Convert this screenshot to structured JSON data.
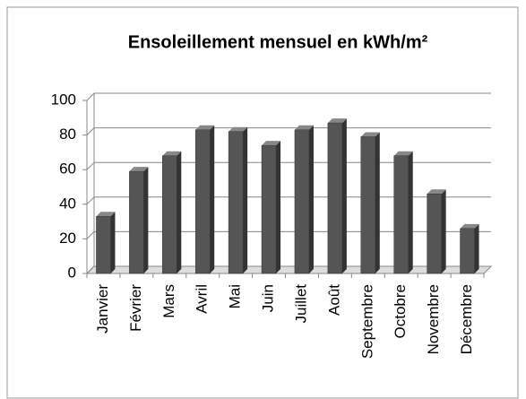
{
  "chart_data": {
    "type": "bar",
    "title": "Ensoleillement mensuel en kWh/m²",
    "categories": [
      "Janvier",
      "Février",
      "Mars",
      "Avril",
      "Mai",
      "Juin",
      "Juillet",
      "Août",
      "Septembre",
      "Octobre",
      "Novembre",
      "Décembre"
    ],
    "values": [
      33,
      59,
      68,
      83,
      82,
      74,
      83,
      87,
      79,
      68,
      46,
      26
    ],
    "color": "#555555",
    "ylim": [
      0,
      100
    ],
    "yticks": [
      0,
      20,
      40,
      60,
      80,
      100
    ],
    "grid": true
  }
}
